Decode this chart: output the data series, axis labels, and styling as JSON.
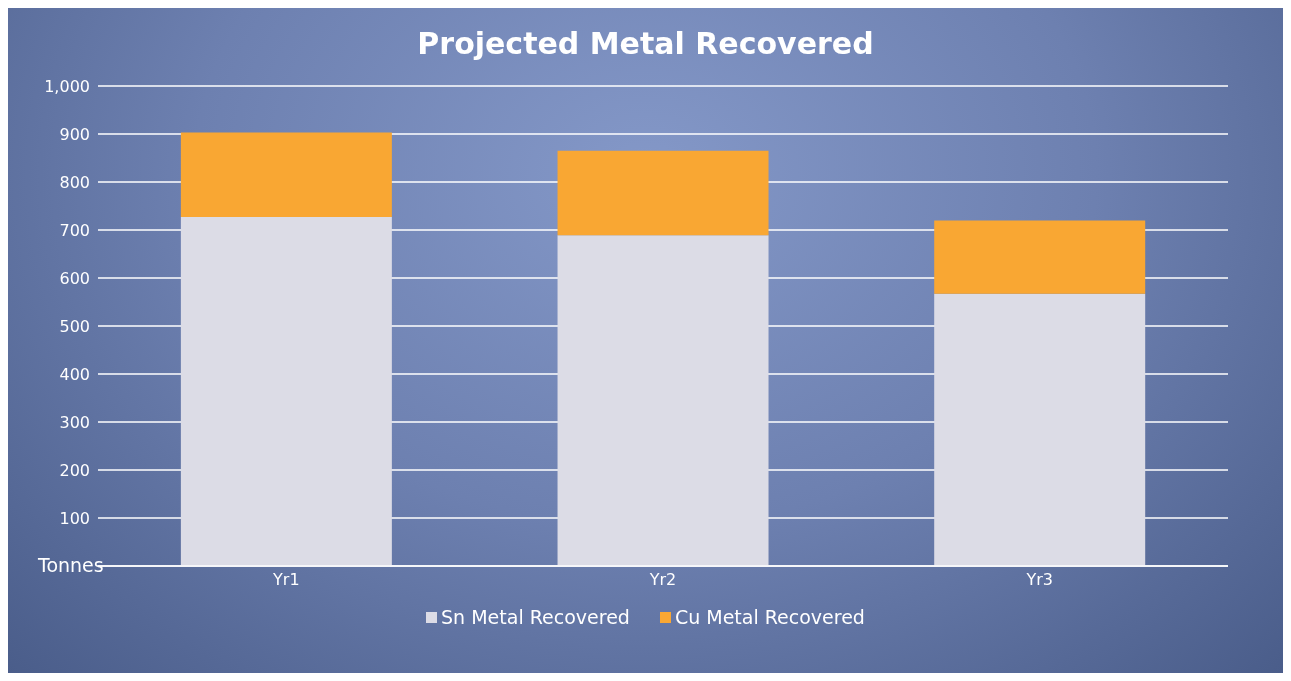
{
  "chart_data": {
    "type": "bar",
    "title": "Projected Metal Recovered",
    "ylabel": "Tonnes",
    "categories": [
      "Yr1",
      "Yr2",
      "Yr3"
    ],
    "stacked": true,
    "series": [
      {
        "name": "Sn Metal Recovered",
        "color": "#dcdce6",
        "values": [
          727,
          689,
          567
        ]
      },
      {
        "name": "Cu Metal Recovered",
        "color": "#f9a733",
        "values": [
          176,
          176,
          153
        ]
      }
    ],
    "ylim": [
      0,
      1000
    ],
    "yticks": [
      {
        "value": 0,
        "label": null
      },
      100,
      200,
      300,
      400,
      500,
      600,
      700,
      800,
      900,
      {
        "value": 1000,
        "label": "1,000"
      }
    ],
    "grid": "y",
    "legend": "bottom"
  }
}
